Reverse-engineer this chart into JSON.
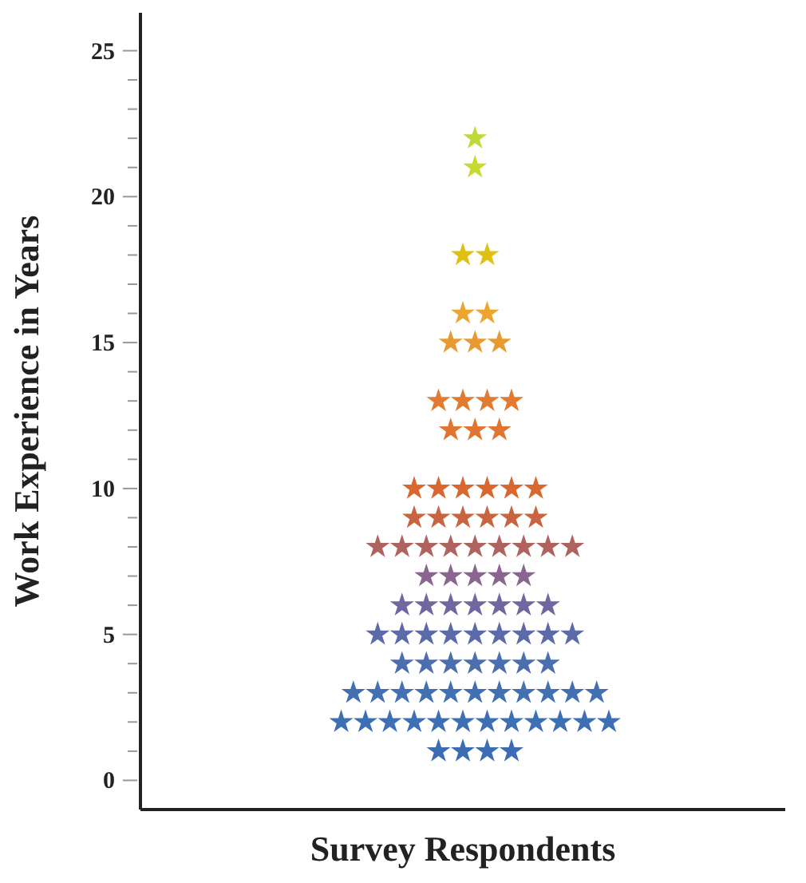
{
  "chart_data": {
    "type": "scatter",
    "xlabel": "Survey Respondents",
    "ylabel": "Work Experience in Years",
    "marker": "star",
    "tick_labels": "y",
    "categories": [
      null,
      null,
      null,
      null,
      null,
      null,
      null,
      null,
      null,
      null,
      null,
      null,
      null,
      null,
      null,
      null,
      null,
      null,
      null,
      null,
      null,
      null,
      null,
      null,
      null,
      null,
      null,
      null,
      null,
      null,
      null,
      null,
      null,
      null,
      null,
      null,
      null,
      null,
      null,
      null,
      null,
      null,
      null,
      null,
      null,
      null,
      null,
      null,
      null,
      null,
      null,
      null,
      null
    ],
    "ylim": [
      -1,
      26.3
    ],
    "yticks": [
      0,
      {
        "value": 1,
        "label": null
      },
      {
        "value": 2,
        "label": null
      },
      {
        "value": 3,
        "label": null
      },
      {
        "value": 4,
        "label": null
      },
      5,
      {
        "value": 6,
        "label": null
      },
      {
        "value": 7,
        "label": null
      },
      {
        "value": 8,
        "label": null
      },
      {
        "value": 9,
        "label": null
      },
      10,
      {
        "value": 11,
        "label": null
      },
      {
        "value": 12,
        "label": null
      },
      {
        "value": 13,
        "label": null
      },
      {
        "value": 14,
        "label": null
      },
      15,
      {
        "value": 16,
        "label": null
      },
      {
        "value": 17,
        "label": null
      },
      {
        "value": 18,
        "label": null
      },
      {
        "value": 19,
        "label": null
      },
      20,
      {
        "value": 21,
        "label": null
      },
      {
        "value": 22,
        "label": null
      },
      {
        "value": 23,
        "label": null
      },
      {
        "value": 24,
        "label": null
      },
      25
    ],
    "series": [
      {
        "color": "#3a6db3",
        "values": [
          null,
          null,
          null,
          null,
          null,
          null,
          null,
          null,
          null,
          null,
          null,
          null,
          null,
          null,
          null,
          null,
          null,
          null,
          null,
          null,
          null,
          null,
          null,
          null,
          1,
          null,
          1,
          null,
          1,
          null,
          1,
          null,
          null,
          null,
          null,
          null,
          null,
          null,
          null,
          null,
          null,
          null,
          null,
          null,
          null,
          null,
          null,
          null,
          null,
          null,
          null,
          null,
          null
        ]
      },
      {
        "color": "#3d6fb5",
        "values": [
          null,
          null,
          null,
          null,
          null,
          null,
          null,
          null,
          null,
          null,
          null,
          null,
          null,
          null,
          null,
          null,
          2,
          null,
          2,
          null,
          2,
          null,
          2,
          null,
          2,
          null,
          2,
          null,
          2,
          null,
          2,
          null,
          2,
          null,
          2,
          null,
          2,
          null,
          2,
          null,
          null,
          null,
          null,
          null,
          null,
          null,
          null,
          null,
          null,
          null,
          null,
          null,
          null
        ]
      },
      {
        "color": "#4270b2",
        "values": [
          null,
          null,
          null,
          null,
          null,
          null,
          null,
          null,
          null,
          null,
          null,
          null,
          null,
          null,
          null,
          null,
          null,
          3,
          null,
          3,
          null,
          3,
          null,
          3,
          null,
          3,
          null,
          3,
          null,
          3,
          null,
          3,
          null,
          3,
          null,
          3,
          null,
          3,
          null,
          null,
          null,
          null,
          null,
          null,
          null,
          null,
          null,
          null,
          null,
          null,
          null,
          null,
          null
        ]
      },
      {
        "color": "#4a6eae",
        "values": [
          null,
          null,
          null,
          null,
          null,
          null,
          null,
          null,
          null,
          null,
          null,
          null,
          null,
          null,
          null,
          null,
          null,
          null,
          null,
          null,
          null,
          4,
          null,
          4,
          null,
          4,
          null,
          4,
          null,
          4,
          null,
          4,
          null,
          4,
          null,
          null,
          null,
          null,
          null,
          null,
          null,
          null,
          null,
          null,
          null,
          null,
          null,
          null,
          null,
          null,
          null,
          null,
          null
        ]
      },
      {
        "color": "#5b6aa9",
        "values": [
          null,
          null,
          null,
          null,
          null,
          null,
          null,
          null,
          null,
          null,
          null,
          null,
          null,
          null,
          null,
          null,
          null,
          null,
          null,
          5,
          null,
          5,
          null,
          5,
          null,
          5,
          null,
          5,
          null,
          5,
          null,
          5,
          null,
          5,
          null,
          5,
          null,
          null,
          null,
          null,
          null,
          null,
          null,
          null,
          null,
          null,
          null,
          null,
          null,
          null,
          null,
          null,
          null
        ]
      },
      {
        "color": "#6e67a0",
        "values": [
          null,
          null,
          null,
          null,
          null,
          null,
          null,
          null,
          null,
          null,
          null,
          null,
          null,
          null,
          null,
          null,
          null,
          null,
          null,
          null,
          null,
          6,
          null,
          6,
          null,
          6,
          null,
          6,
          null,
          6,
          null,
          6,
          null,
          6,
          null,
          null,
          null,
          null,
          null,
          null,
          null,
          null,
          null,
          null,
          null,
          null,
          null,
          null,
          null,
          null,
          null,
          null,
          null
        ]
      },
      {
        "color": "#8a6590",
        "values": [
          null,
          null,
          null,
          null,
          null,
          null,
          null,
          null,
          null,
          null,
          null,
          null,
          null,
          null,
          null,
          null,
          null,
          null,
          null,
          null,
          null,
          null,
          null,
          7,
          null,
          7,
          null,
          7,
          null,
          7,
          null,
          7,
          null,
          null,
          null,
          null,
          null,
          null,
          null,
          null,
          null,
          null,
          null,
          null,
          null,
          null,
          null,
          null,
          null,
          null,
          null,
          null,
          null
        ]
      },
      {
        "color": "#b0625e",
        "values": [
          null,
          null,
          null,
          null,
          null,
          null,
          null,
          null,
          null,
          null,
          null,
          null,
          null,
          null,
          null,
          null,
          null,
          null,
          null,
          8,
          null,
          8,
          null,
          8,
          null,
          8,
          null,
          8,
          null,
          8,
          null,
          8,
          null,
          8,
          null,
          8,
          null,
          null,
          null,
          null,
          null,
          null,
          null,
          null,
          null,
          null,
          null,
          null,
          null,
          null,
          null,
          null,
          null
        ]
      },
      {
        "color": "#c8643f",
        "values": [
          null,
          null,
          null,
          null,
          null,
          null,
          null,
          null,
          null,
          null,
          null,
          null,
          null,
          null,
          null,
          null,
          null,
          null,
          null,
          null,
          null,
          null,
          9,
          null,
          9,
          null,
          9,
          null,
          9,
          null,
          9,
          null,
          9,
          null,
          null,
          null,
          null,
          null,
          null,
          null,
          null,
          null,
          null,
          null,
          null,
          null,
          null,
          null,
          null,
          null,
          null,
          null,
          null
        ]
      },
      {
        "color": "#d8682f",
        "values": [
          null,
          null,
          null,
          null,
          null,
          null,
          null,
          null,
          null,
          null,
          null,
          null,
          null,
          null,
          null,
          null,
          null,
          null,
          null,
          null,
          null,
          null,
          10,
          null,
          10,
          null,
          10,
          null,
          10,
          null,
          10,
          null,
          10,
          null,
          null,
          null,
          null,
          null,
          null,
          null,
          null,
          null,
          null,
          null,
          null,
          null,
          null,
          null,
          null,
          null,
          null,
          null,
          null
        ]
      },
      {
        "color": "#e07430",
        "values": [
          null,
          null,
          null,
          null,
          null,
          null,
          null,
          null,
          null,
          null,
          null,
          null,
          null,
          null,
          null,
          null,
          null,
          null,
          null,
          null,
          null,
          null,
          null,
          null,
          null,
          12,
          null,
          12,
          null,
          12,
          null,
          null,
          null,
          null,
          null,
          null,
          null,
          null,
          null,
          null,
          null,
          null,
          null,
          null,
          null,
          null,
          null,
          null,
          null,
          null,
          null,
          null,
          null
        ]
      },
      {
        "color": "#e27a30",
        "values": [
          null,
          null,
          null,
          null,
          null,
          null,
          null,
          null,
          null,
          null,
          null,
          null,
          null,
          null,
          null,
          null,
          null,
          null,
          null,
          null,
          null,
          null,
          null,
          null,
          13,
          null,
          13,
          null,
          13,
          null,
          13,
          null,
          null,
          null,
          null,
          null,
          null,
          null,
          null,
          null,
          null,
          null,
          null,
          null,
          null,
          null,
          null,
          null,
          null,
          null,
          null,
          null,
          null
        ]
      },
      {
        "color": "#e89a30",
        "values": [
          null,
          null,
          null,
          null,
          null,
          null,
          null,
          null,
          null,
          null,
          null,
          null,
          null,
          null,
          null,
          null,
          null,
          null,
          null,
          null,
          null,
          null,
          null,
          null,
          null,
          15,
          null,
          15,
          null,
          15,
          null,
          null,
          null,
          null,
          null,
          null,
          null,
          null,
          null,
          null,
          null,
          null,
          null,
          null,
          null,
          null,
          null,
          null,
          null,
          null,
          null,
          null,
          null
        ]
      },
      {
        "color": "#eba530",
        "values": [
          null,
          null,
          null,
          null,
          null,
          null,
          null,
          null,
          null,
          null,
          null,
          null,
          null,
          null,
          null,
          null,
          null,
          null,
          null,
          null,
          null,
          null,
          null,
          null,
          null,
          null,
          16,
          null,
          16,
          null,
          null,
          null,
          null,
          null,
          null,
          null,
          null,
          null,
          null,
          null,
          null,
          null,
          null,
          null,
          null,
          null,
          null,
          null,
          null,
          null,
          null,
          null,
          null
        ]
      },
      {
        "color": "#e0c010",
        "values": [
          null,
          null,
          null,
          null,
          null,
          null,
          null,
          null,
          null,
          null,
          null,
          null,
          null,
          null,
          null,
          null,
          null,
          null,
          null,
          null,
          null,
          null,
          null,
          null,
          null,
          null,
          18,
          null,
          18,
          null,
          null,
          null,
          null,
          null,
          null,
          null,
          null,
          null,
          null,
          null,
          null,
          null,
          null,
          null,
          null,
          null,
          null,
          null,
          null,
          null,
          null,
          null,
          null
        ]
      },
      {
        "color": "#c8da30",
        "values": [
          null,
          null,
          null,
          null,
          null,
          null,
          null,
          null,
          null,
          null,
          null,
          null,
          null,
          null,
          null,
          null,
          null,
          null,
          null,
          null,
          null,
          null,
          null,
          null,
          null,
          null,
          null,
          21,
          null,
          null,
          null,
          null,
          null,
          null,
          null,
          null,
          null,
          null,
          null,
          null,
          null,
          null,
          null,
          null,
          null,
          null,
          null,
          null,
          null,
          null,
          null,
          null,
          null
        ]
      },
      {
        "color": "#c0d838",
        "values": [
          null,
          null,
          null,
          null,
          null,
          null,
          null,
          null,
          null,
          null,
          null,
          null,
          null,
          null,
          null,
          null,
          null,
          null,
          null,
          null,
          null,
          null,
          null,
          null,
          null,
          null,
          null,
          22,
          null,
          null,
          null,
          null,
          null,
          null,
          null,
          null,
          null,
          null,
          null,
          null,
          null,
          null,
          null,
          null,
          null,
          null,
          null,
          null,
          null,
          null,
          null,
          null,
          null
        ]
      }
    ]
  }
}
